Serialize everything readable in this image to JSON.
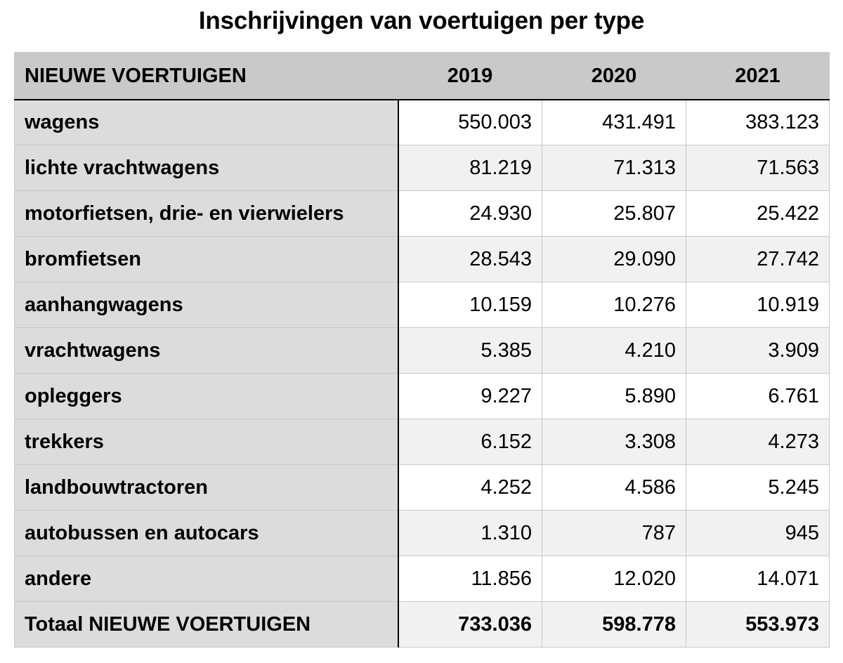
{
  "title": "Inschrijvingen van voertuigen per type",
  "chart_data": {
    "type": "table",
    "title": "Inschrijvingen van voertuigen per type",
    "columns": [
      "NIEUWE VOERTUIGEN",
      "2019",
      "2020",
      "2021"
    ],
    "rows": [
      {
        "label": "wagens",
        "values": [
          "550.003",
          "431.491",
          "383.123"
        ]
      },
      {
        "label": "lichte vrachtwagens",
        "values": [
          "81.219",
          "71.313",
          "71.563"
        ]
      },
      {
        "label": "motorfietsen, drie- en vierwielers",
        "values": [
          "24.930",
          "25.807",
          "25.422"
        ]
      },
      {
        "label": "bromfietsen",
        "values": [
          "28.543",
          "29.090",
          "27.742"
        ]
      },
      {
        "label": "aanhangwagens",
        "values": [
          "10.159",
          "10.276",
          "10.919"
        ]
      },
      {
        "label": "vrachtwagens",
        "values": [
          "5.385",
          "4.210",
          "3.909"
        ]
      },
      {
        "label": "opleggers",
        "values": [
          "9.227",
          "5.890",
          "6.761"
        ]
      },
      {
        "label": "trekkers",
        "values": [
          "6.152",
          "3.308",
          "4.273"
        ]
      },
      {
        "label": "landbouwtractoren",
        "values": [
          "4.252",
          "4.586",
          "5.245"
        ]
      },
      {
        "label": "autobussen en autocars",
        "values": [
          "1.310",
          "787",
          "945"
        ]
      },
      {
        "label": "andere",
        "values": [
          "11.856",
          "12.020",
          "14.071"
        ]
      },
      {
        "label": "Totaal NIEUWE VOERTUIGEN",
        "values": [
          "733.036",
          "598.778",
          "553.973"
        ]
      }
    ]
  }
}
